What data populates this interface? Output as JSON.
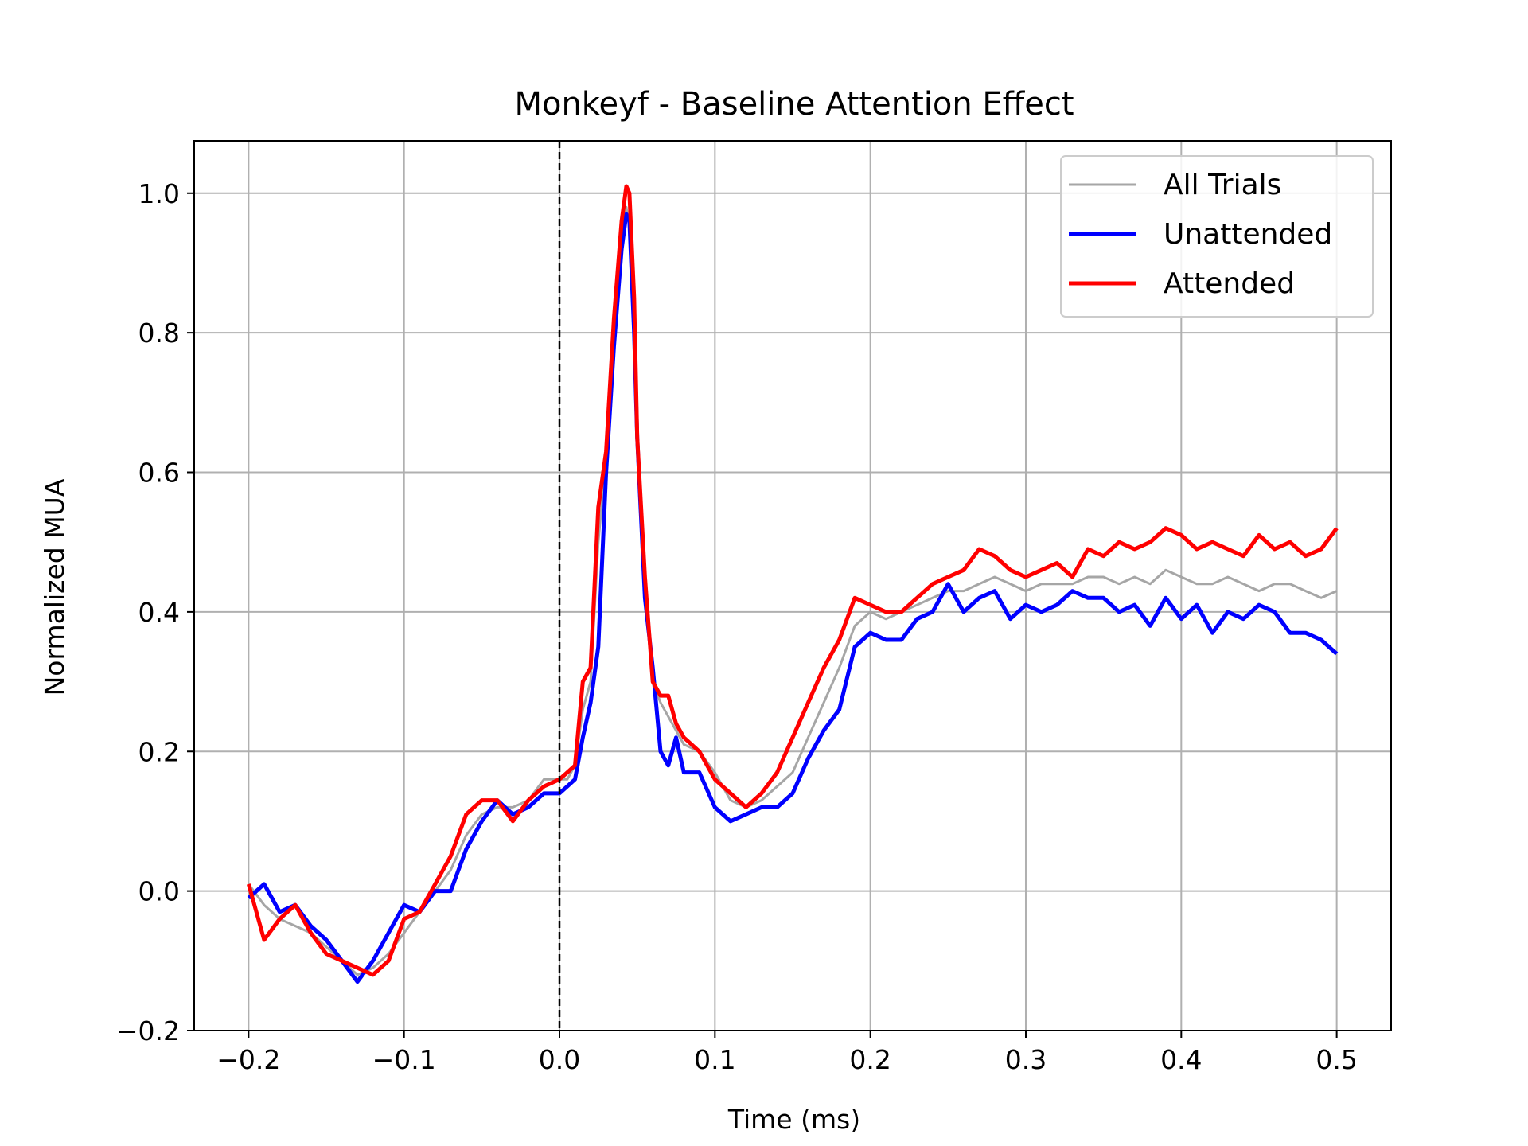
{
  "chart_data": {
    "type": "line",
    "title": "Monkeyf - Baseline Attention Effect",
    "xlabel": "Time (ms)",
    "ylabel": "Normalized MUA",
    "xlim": [
      -0.235,
      0.535
    ],
    "ylim": [
      -0.2,
      1.075
    ],
    "xticks": [
      -0.2,
      -0.1,
      0.0,
      0.1,
      0.2,
      0.3,
      0.4,
      0.5
    ],
    "xtick_labels": [
      "−0.2",
      "−0.1",
      "0.0",
      "0.1",
      "0.2",
      "0.3",
      "0.4",
      "0.5"
    ],
    "yticks": [
      -0.2,
      0.0,
      0.2,
      0.4,
      0.6,
      0.8,
      1.0
    ],
    "ytick_labels": [
      "−0.2",
      "0.0",
      "0.2",
      "0.4",
      "0.6",
      "0.8",
      "1.0"
    ],
    "grid": true,
    "legend_position": "upper right",
    "vline": {
      "x": 0.0,
      "style": "dashed",
      "color": "#000000"
    },
    "series": [
      {
        "name": "All Trials",
        "color": "#a6a6a6",
        "x": [
          -0.2,
          -0.19,
          -0.18,
          -0.17,
          -0.16,
          -0.15,
          -0.14,
          -0.13,
          -0.12,
          -0.11,
          -0.1,
          -0.09,
          -0.08,
          -0.07,
          -0.06,
          -0.05,
          -0.04,
          -0.03,
          -0.02,
          -0.01,
          0.0,
          0.005,
          0.01,
          0.015,
          0.02,
          0.025,
          0.03,
          0.035,
          0.04,
          0.043,
          0.045,
          0.048,
          0.05,
          0.055,
          0.06,
          0.065,
          0.07,
          0.075,
          0.08,
          0.09,
          0.1,
          0.11,
          0.12,
          0.13,
          0.14,
          0.15,
          0.16,
          0.17,
          0.18,
          0.19,
          0.2,
          0.21,
          0.22,
          0.23,
          0.24,
          0.25,
          0.26,
          0.27,
          0.28,
          0.29,
          0.3,
          0.31,
          0.32,
          0.33,
          0.34,
          0.35,
          0.36,
          0.37,
          0.38,
          0.39,
          0.4,
          0.41,
          0.42,
          0.43,
          0.44,
          0.45,
          0.46,
          0.47,
          0.48,
          0.49,
          0.5
        ],
        "y": [
          0.01,
          -0.02,
          -0.04,
          -0.05,
          -0.06,
          -0.08,
          -0.1,
          -0.12,
          -0.11,
          -0.09,
          -0.06,
          -0.03,
          0.0,
          0.03,
          0.08,
          0.11,
          0.12,
          0.12,
          0.13,
          0.16,
          0.16,
          0.16,
          0.18,
          0.26,
          0.3,
          0.5,
          0.62,
          0.8,
          0.93,
          0.98,
          0.95,
          0.8,
          0.65,
          0.45,
          0.3,
          0.27,
          0.25,
          0.23,
          0.21,
          0.2,
          0.17,
          0.13,
          0.12,
          0.13,
          0.15,
          0.17,
          0.22,
          0.27,
          0.32,
          0.38,
          0.4,
          0.39,
          0.4,
          0.41,
          0.42,
          0.43,
          0.43,
          0.44,
          0.45,
          0.44,
          0.43,
          0.44,
          0.44,
          0.44,
          0.45,
          0.45,
          0.44,
          0.45,
          0.44,
          0.46,
          0.45,
          0.44,
          0.44,
          0.45,
          0.44,
          0.43,
          0.44,
          0.44,
          0.43,
          0.42,
          0.43
        ]
      },
      {
        "name": "Unattended",
        "color": "#0000ff",
        "x": [
          -0.2,
          -0.19,
          -0.18,
          -0.17,
          -0.16,
          -0.15,
          -0.14,
          -0.13,
          -0.12,
          -0.11,
          -0.1,
          -0.09,
          -0.08,
          -0.07,
          -0.06,
          -0.05,
          -0.04,
          -0.03,
          -0.02,
          -0.01,
          0.0,
          0.005,
          0.01,
          0.015,
          0.02,
          0.025,
          0.03,
          0.035,
          0.04,
          0.043,
          0.045,
          0.048,
          0.05,
          0.055,
          0.06,
          0.065,
          0.07,
          0.075,
          0.08,
          0.09,
          0.1,
          0.11,
          0.12,
          0.13,
          0.14,
          0.15,
          0.16,
          0.17,
          0.18,
          0.19,
          0.2,
          0.21,
          0.22,
          0.23,
          0.24,
          0.25,
          0.26,
          0.27,
          0.28,
          0.29,
          0.3,
          0.31,
          0.32,
          0.33,
          0.34,
          0.35,
          0.36,
          0.37,
          0.38,
          0.39,
          0.4,
          0.41,
          0.42,
          0.43,
          0.44,
          0.45,
          0.46,
          0.47,
          0.48,
          0.49,
          0.5
        ],
        "y": [
          -0.01,
          0.01,
          -0.03,
          -0.02,
          -0.05,
          -0.07,
          -0.1,
          -0.13,
          -0.1,
          -0.06,
          -0.02,
          -0.03,
          0.0,
          0.0,
          0.06,
          0.1,
          0.13,
          0.11,
          0.12,
          0.14,
          0.14,
          0.15,
          0.16,
          0.22,
          0.27,
          0.35,
          0.6,
          0.78,
          0.92,
          0.97,
          0.96,
          0.8,
          0.65,
          0.42,
          0.32,
          0.2,
          0.18,
          0.22,
          0.17,
          0.17,
          0.12,
          0.1,
          0.11,
          0.12,
          0.12,
          0.14,
          0.19,
          0.23,
          0.26,
          0.35,
          0.37,
          0.36,
          0.36,
          0.39,
          0.4,
          0.44,
          0.4,
          0.42,
          0.43,
          0.39,
          0.41,
          0.4,
          0.41,
          0.43,
          0.42,
          0.42,
          0.4,
          0.41,
          0.38,
          0.42,
          0.39,
          0.41,
          0.37,
          0.4,
          0.39,
          0.41,
          0.4,
          0.37,
          0.37,
          0.36,
          0.34
        ]
      },
      {
        "name": "Attended",
        "color": "#ff0000",
        "x": [
          -0.2,
          -0.19,
          -0.18,
          -0.17,
          -0.16,
          -0.15,
          -0.14,
          -0.13,
          -0.12,
          -0.11,
          -0.1,
          -0.09,
          -0.08,
          -0.07,
          -0.06,
          -0.05,
          -0.04,
          -0.03,
          -0.02,
          -0.01,
          0.0,
          0.005,
          0.01,
          0.015,
          0.02,
          0.025,
          0.03,
          0.035,
          0.04,
          0.043,
          0.045,
          0.048,
          0.05,
          0.055,
          0.06,
          0.065,
          0.07,
          0.075,
          0.08,
          0.09,
          0.1,
          0.11,
          0.12,
          0.13,
          0.14,
          0.15,
          0.16,
          0.17,
          0.18,
          0.19,
          0.2,
          0.21,
          0.22,
          0.23,
          0.24,
          0.25,
          0.26,
          0.27,
          0.28,
          0.29,
          0.3,
          0.31,
          0.32,
          0.33,
          0.34,
          0.35,
          0.36,
          0.37,
          0.38,
          0.39,
          0.4,
          0.41,
          0.42,
          0.43,
          0.44,
          0.45,
          0.46,
          0.47,
          0.48,
          0.49,
          0.5
        ],
        "y": [
          0.01,
          -0.07,
          -0.04,
          -0.02,
          -0.06,
          -0.09,
          -0.1,
          -0.11,
          -0.12,
          -0.1,
          -0.04,
          -0.03,
          0.01,
          0.05,
          0.11,
          0.13,
          0.13,
          0.1,
          0.13,
          0.15,
          0.16,
          0.17,
          0.18,
          0.3,
          0.32,
          0.55,
          0.63,
          0.82,
          0.96,
          1.01,
          1.0,
          0.85,
          0.65,
          0.45,
          0.3,
          0.28,
          0.28,
          0.24,
          0.22,
          0.2,
          0.16,
          0.14,
          0.12,
          0.14,
          0.17,
          0.22,
          0.27,
          0.32,
          0.36,
          0.42,
          0.41,
          0.4,
          0.4,
          0.42,
          0.44,
          0.45,
          0.46,
          0.49,
          0.48,
          0.46,
          0.45,
          0.46,
          0.47,
          0.45,
          0.49,
          0.48,
          0.5,
          0.49,
          0.5,
          0.52,
          0.51,
          0.49,
          0.5,
          0.49,
          0.48,
          0.51,
          0.49,
          0.5,
          0.48,
          0.49,
          0.52
        ]
      }
    ]
  }
}
